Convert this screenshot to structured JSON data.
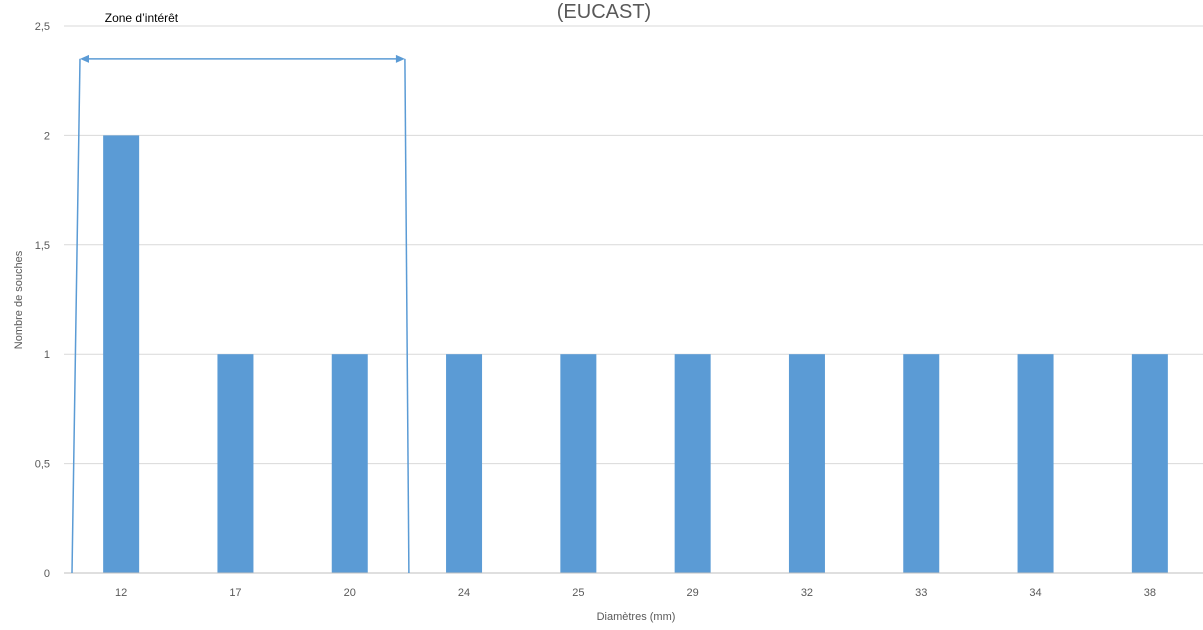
{
  "chart_data": {
    "type": "bar",
    "title": "(EUCAST)",
    "xlabel": "Diamètres (mm)",
    "ylabel": "Nombre de souches",
    "categories": [
      "12",
      "17",
      "20",
      "24",
      "25",
      "29",
      "32",
      "33",
      "34",
      "38"
    ],
    "values": [
      2,
      1,
      1,
      1,
      1,
      1,
      1,
      1,
      1,
      1
    ],
    "ylim": [
      0,
      2.5
    ],
    "yticks": [
      "0",
      "0,5",
      "1",
      "1,5",
      "2",
      "2,5"
    ],
    "grid": true,
    "legend": "none",
    "bar_color": "#5b9bd5",
    "annotation": {
      "text": "Zone d’intérêt",
      "from_category": "12",
      "to_category": "20",
      "color": "#5b9bd5"
    }
  }
}
